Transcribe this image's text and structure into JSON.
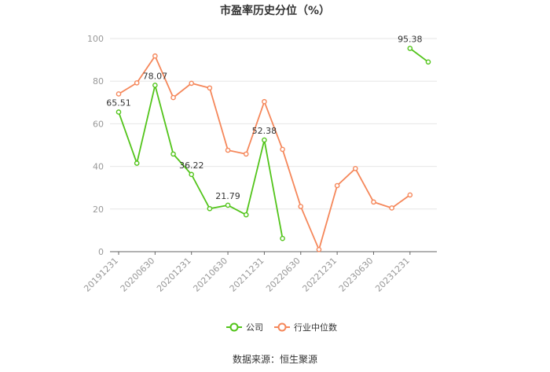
{
  "chart_data": {
    "type": "line",
    "title": "市盈率历史分位（%）",
    "x_tick_labels": [
      "20191231",
      "20200630",
      "20201231",
      "20210630",
      "20211231",
      "20220630",
      "20221231",
      "20230630",
      "20231231"
    ],
    "categories": [
      "20191231",
      "20200331",
      "20200630",
      "20200930",
      "20201231",
      "20210331",
      "20210630",
      "20210930",
      "20211231",
      "20220331",
      "20220630",
      "20220930",
      "20221231",
      "20230331",
      "20230630",
      "20230930",
      "20231231",
      "20240331"
    ],
    "ylim": [
      0,
      100
    ],
    "yticks": [
      0,
      20,
      40,
      60,
      80,
      100
    ],
    "grid": true,
    "legend_position": "bottom",
    "series": [
      {
        "name": "公司",
        "color": "#52c41a",
        "values": [
          65.51,
          41.5,
          78.07,
          45.8,
          36.22,
          20.2,
          21.79,
          17.3,
          52.38,
          6.2,
          null,
          null,
          null,
          null,
          null,
          null,
          95.38,
          89.0
        ]
      },
      {
        "name": "行业中位数",
        "color": "#f5875a",
        "values": [
          74.0,
          79.2,
          91.8,
          72.3,
          79.0,
          76.8,
          47.6,
          45.8,
          70.4,
          48.0,
          21.2,
          1.0,
          31.0,
          39.0,
          23.3,
          20.5,
          26.6,
          null
        ]
      }
    ],
    "data_labels": [
      {
        "series": 0,
        "index": 0,
        "text": "65.51"
      },
      {
        "series": 0,
        "index": 2,
        "text": "78.07"
      },
      {
        "series": 0,
        "index": 4,
        "text": "36.22"
      },
      {
        "series": 0,
        "index": 6,
        "text": "21.79"
      },
      {
        "series": 0,
        "index": 8,
        "text": "52.38"
      },
      {
        "series": 0,
        "index": 16,
        "text": "95.38"
      }
    ]
  },
  "source_text": "数据来源：恒生聚源"
}
